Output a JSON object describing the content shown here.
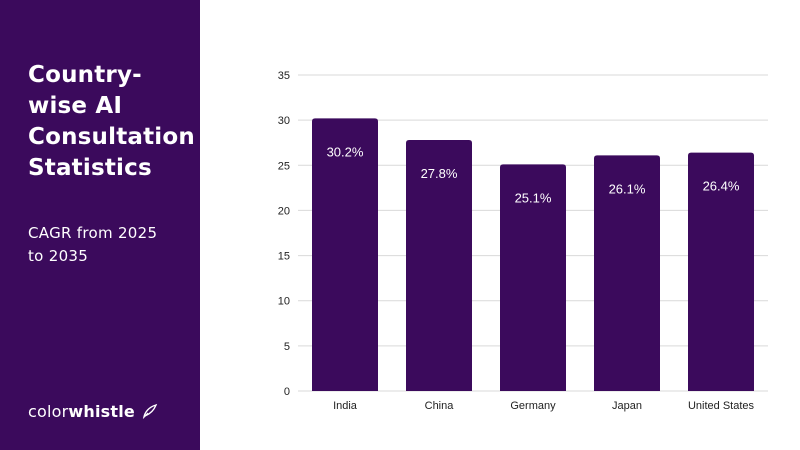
{
  "sidebar": {
    "title": "Country-wise AI Consultation Statistics",
    "subtitle": "CAGR from 2025 to 2035",
    "logo": {
      "part1": "color",
      "part2": "whistle",
      "icon": "leaf-brush-icon"
    }
  },
  "colors": {
    "sidebar_bg": "#3b0a5c",
    "bar": "#3b0a5c",
    "bar_label": "#ffffff",
    "grid": "#d9d9d9",
    "axis_text": "#222222"
  },
  "chart_data": {
    "type": "bar",
    "categories": [
      "India",
      "China",
      "Germany",
      "Japan",
      "United States"
    ],
    "values": [
      30.2,
      27.8,
      25.1,
      26.1,
      26.4
    ],
    "labels": [
      "30.2%",
      "27.8%",
      "25.1%",
      "26.1%",
      "26.4%"
    ],
    "title": "Country-wise AI Consultation Statistics",
    "subtitle": "CAGR from 2025 to 2035",
    "xlabel": "",
    "ylabel": "",
    "ylim": [
      0,
      35
    ],
    "yticks": [
      0,
      5,
      10,
      15,
      20,
      25,
      30,
      35
    ],
    "grid": true,
    "legend": "none"
  }
}
